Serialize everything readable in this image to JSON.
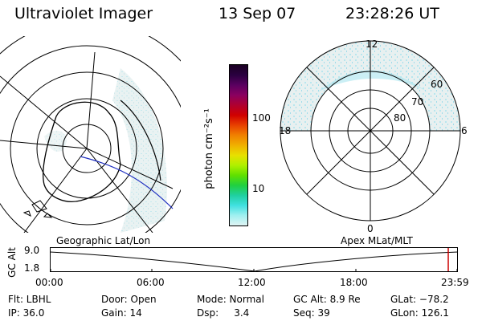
{
  "header": {
    "title": "Ultraviolet Imager",
    "date": "13 Sep 07",
    "time": "23:28:26 UT"
  },
  "colorbar": {
    "unit_label": "photon cm⁻²s⁻¹",
    "ticks": [
      "100",
      "10"
    ],
    "colors": [
      "#1a0022",
      "#2a0040",
      "#5a0060",
      "#8a0060",
      "#b00030",
      "#d00000",
      "#e84000",
      "#f08000",
      "#f0b000",
      "#e8e000",
      "#b0f000",
      "#60e000",
      "#20d040",
      "#20d0a0",
      "#40e0e0",
      "#a0f0f0",
      "#e0f4f4"
    ]
  },
  "polar_plot": {
    "top_label": "12",
    "bottom_label": "0",
    "left_label": "18",
    "right_label": "6",
    "lat_labels": [
      "60",
      "70",
      "80"
    ]
  },
  "timeline": {
    "left_caption": "Geographic Lat/Lon",
    "right_caption": "Apex MLat/MLT",
    "yaxis_label": "GC Alt",
    "yticks": [
      "9.0",
      "1.8"
    ],
    "xticks": [
      "00:00",
      "06:00",
      "12:00",
      "18:00",
      "23:59"
    ],
    "current_marker_color": "#cc0000"
  },
  "footer": {
    "filter": "Flt: LBHL",
    "ip": "IP: 36.0",
    "door": "Door: Open",
    "gain": "Gain: 14",
    "mode": "Mode: Normal",
    "dsp": "Dsp:     3.4",
    "gc_alt": "GC Alt: 8.9 Re",
    "seq": "Seq: 39",
    "glat": "GLat: −78.2",
    "glon": "GLon: 126.1"
  }
}
